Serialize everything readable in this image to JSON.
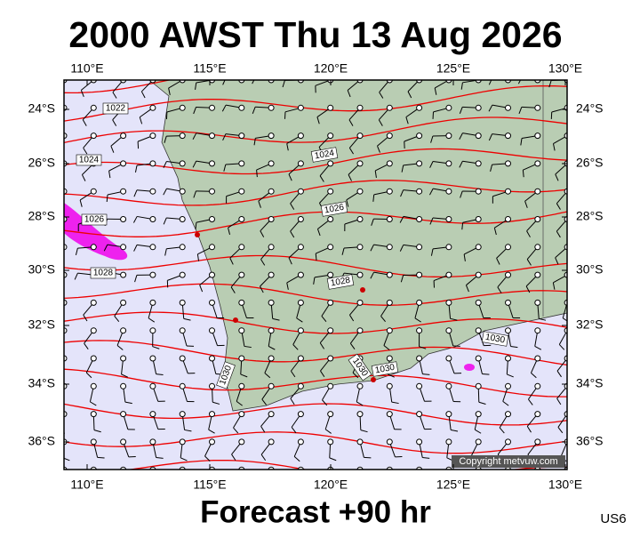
{
  "header": {
    "title": "2000 AWST Thu 13 Aug 2026"
  },
  "map": {
    "longitude_labels": [
      "110°E",
      "115°E",
      "120°E",
      "125°E",
      "130°E"
    ],
    "latitude_labels": [
      "24°S",
      "26°S",
      "28°S",
      "30°S",
      "32°S",
      "34°S",
      "36°S"
    ],
    "isobar_labels": [
      "1022",
      "1024",
      "1024",
      "1026",
      "1026",
      "1028",
      "1028",
      "1030",
      "1030",
      "1030",
      "1030"
    ],
    "copyright": "Copyright metvuw.com"
  },
  "footer": {
    "caption": "Forecast +90 hr",
    "code": "US6"
  }
}
